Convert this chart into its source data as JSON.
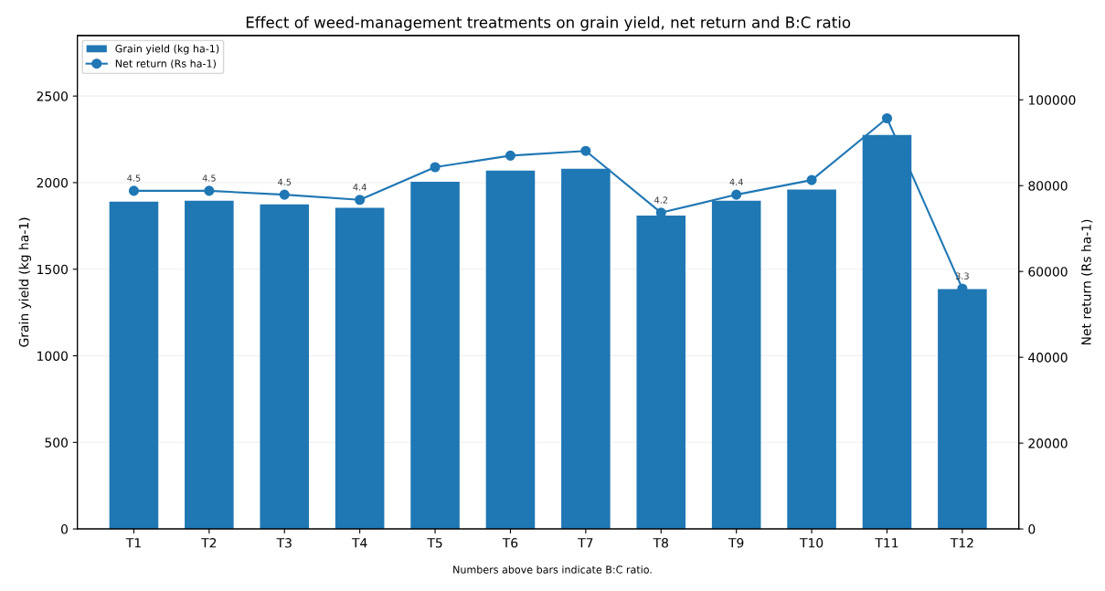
{
  "chart_data": {
    "type": "bar",
    "title": "Effect of weed-management treatments on grain yield, net return and B:C ratio",
    "ylabel": "Grain yield (kg ha-1)",
    "y2label": "Net return (Rs ha-1)",
    "categories": [
      "T1",
      "T2",
      "T3",
      "T4",
      "T5",
      "T6",
      "T7",
      "T8",
      "T9",
      "T10",
      "T11",
      "T12"
    ],
    "series": [
      {
        "name": "Grain yield (kg ha-1)",
        "color": "#1f77b4",
        "values": [
          1890,
          1895,
          1875,
          1855,
          2005,
          2070,
          2080,
          1810,
          1895,
          1960,
          2275,
          1385
        ]
      },
      {
        "name": "Net return (Rs ha-1)",
        "type": "line",
        "axis": "y2",
        "color": "#1f77b4",
        "marker": "circle",
        "values": [
          78800,
          78800,
          77900,
          76700,
          84300,
          87000,
          88100,
          73700,
          77900,
          81300,
          95700,
          56000
        ]
      }
    ],
    "ylim": [
      0,
      2850
    ],
    "yticks": [
      0,
      500,
      1000,
      1500,
      2000,
      2500
    ],
    "y2lim": [
      0,
      115000
    ],
    "y2ticks": [
      0,
      20000,
      40000,
      60000,
      80000,
      100000
    ],
    "grid": "y",
    "legend": "top left",
    "annotations": [
      {
        "text": "4.5",
        "x": "T1",
        "y": 1890
      },
      {
        "text": "4.5",
        "x": "T2",
        "y": 1895
      },
      {
        "text": "4.5",
        "x": "T3",
        "y": 1875
      },
      {
        "text": "4.4",
        "x": "T4",
        "y": 1855
      },
      {
        "text": "4.2",
        "x": "T8",
        "y": 1810
      },
      {
        "text": "4.4",
        "x": "T9",
        "y": 1895
      },
      {
        "text": "3.3",
        "x": "T12",
        "y": 1385
      },
      "Numbers above bars indicate B:C ratio."
    ]
  }
}
